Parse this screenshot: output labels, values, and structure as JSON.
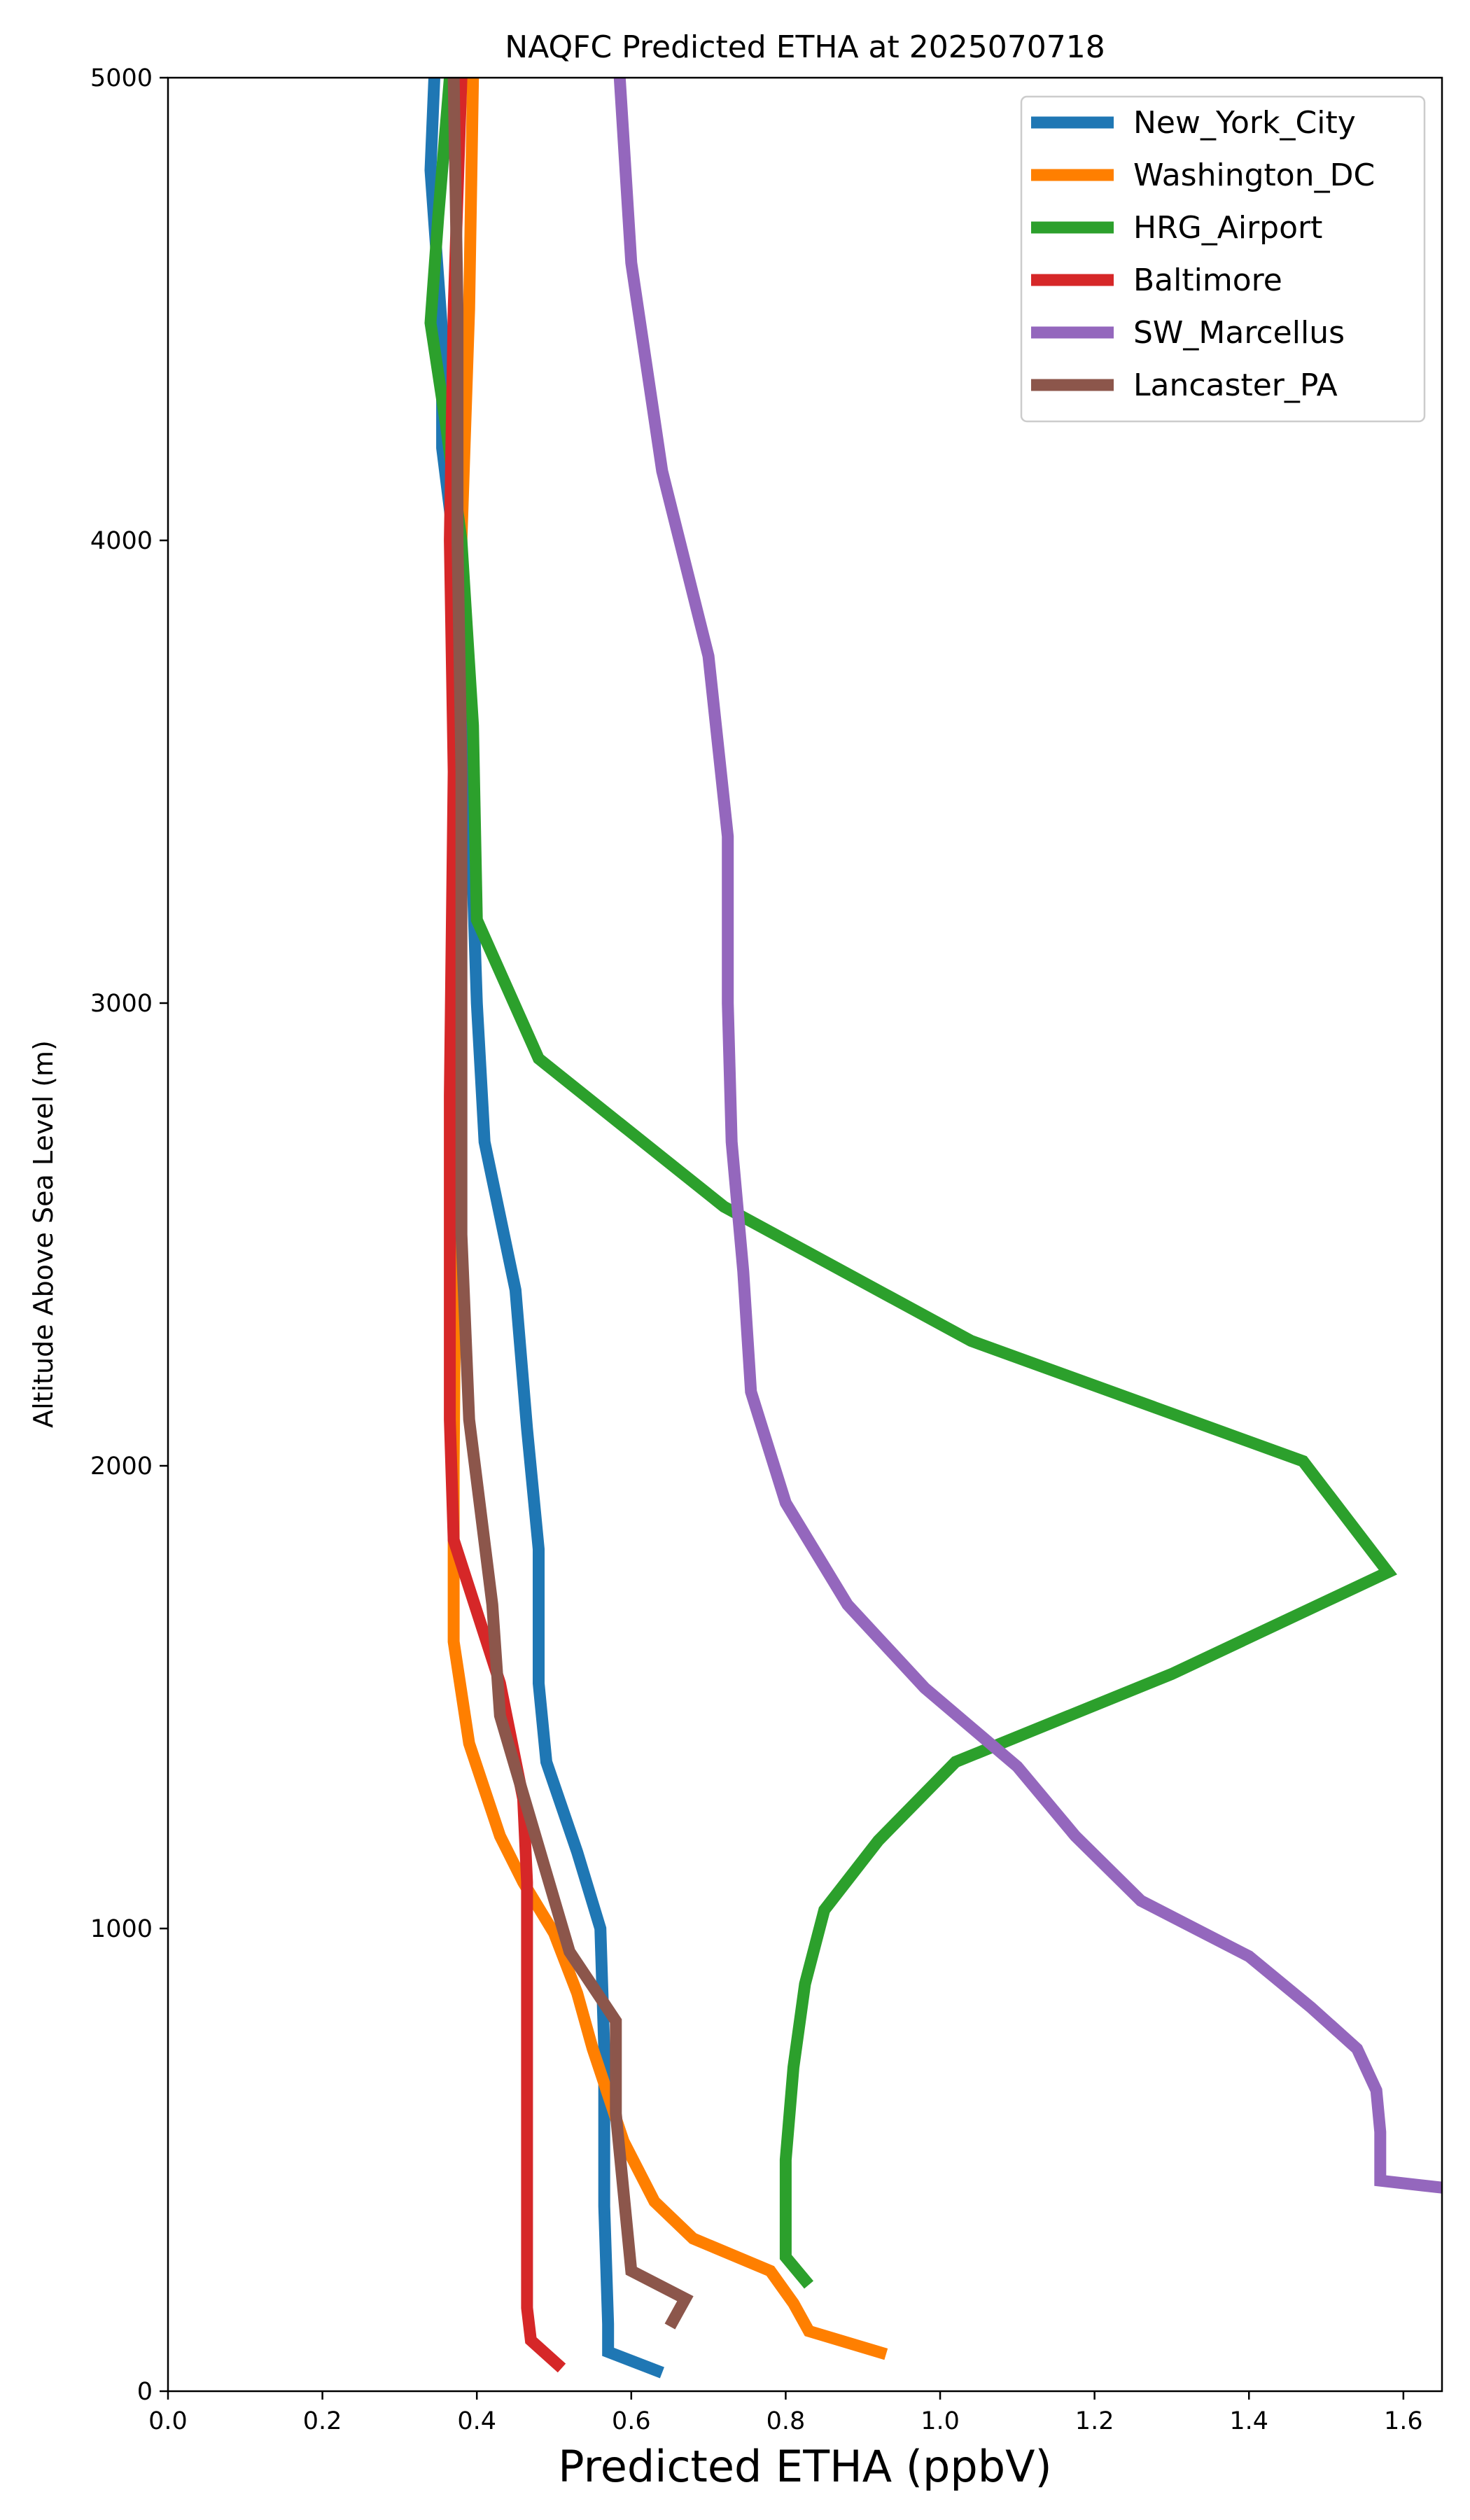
{
  "chart_data": {
    "type": "line",
    "title": "NAQFC Predicted ETHA at 2025070718",
    "xlabel": "Predicted ETHA (ppbV)",
    "ylabel": "Altitude Above Sea Level (m)",
    "xlim": [
      0,
      1.65
    ],
    "ylim": [
      0,
      5000
    ],
    "xticks": [
      "0.0",
      "0.2",
      "0.4",
      "0.6",
      "0.8",
      "1.0",
      "1.2",
      "1.4",
      "1.6"
    ],
    "yticks": [
      "0",
      "1000",
      "2000",
      "3000",
      "4000",
      "5000"
    ],
    "grid": false,
    "legend_position": "top-right",
    "series": [
      {
        "name": "New_York_City",
        "color": "#1f77b4",
        "points": [
          [
            0.64,
            40
          ],
          [
            0.57,
            85
          ],
          [
            0.57,
            145
          ],
          [
            0.565,
            400
          ],
          [
            0.565,
            740
          ],
          [
            0.56,
            1000
          ],
          [
            0.53,
            1165
          ],
          [
            0.49,
            1360
          ],
          [
            0.48,
            1530
          ],
          [
            0.48,
            1820
          ],
          [
            0.465,
            2080
          ],
          [
            0.45,
            2380
          ],
          [
            0.41,
            2700
          ],
          [
            0.4,
            3000
          ],
          [
            0.39,
            3500
          ],
          [
            0.37,
            4000
          ],
          [
            0.355,
            4200
          ],
          [
            0.355,
            4450
          ],
          [
            0.34,
            4800
          ],
          [
            0.345,
            5000
          ]
        ]
      },
      {
        "name": "Washington_DC",
        "color": "#ff7f00",
        "points": [
          [
            0.93,
            80
          ],
          [
            0.83,
            130
          ],
          [
            0.81,
            190
          ],
          [
            0.78,
            260
          ],
          [
            0.68,
            330
          ],
          [
            0.63,
            410
          ],
          [
            0.59,
            540
          ],
          [
            0.55,
            740
          ],
          [
            0.53,
            860
          ],
          [
            0.5,
            990
          ],
          [
            0.46,
            1100
          ],
          [
            0.43,
            1200
          ],
          [
            0.39,
            1400
          ],
          [
            0.37,
            1620
          ],
          [
            0.37,
            2000
          ],
          [
            0.375,
            3000
          ],
          [
            0.375,
            3500
          ],
          [
            0.38,
            4000
          ],
          [
            0.39,
            4500
          ],
          [
            0.395,
            5000
          ]
        ]
      },
      {
        "name": "HRG_Airport",
        "color": "#2ca02c",
        "points": [
          [
            0.83,
            230
          ],
          [
            0.8,
            290
          ],
          [
            0.8,
            500
          ],
          [
            0.81,
            700
          ],
          [
            0.825,
            880
          ],
          [
            0.85,
            1040
          ],
          [
            0.92,
            1190
          ],
          [
            1.02,
            1360
          ],
          [
            1.3,
            1550
          ],
          [
            1.58,
            1770
          ],
          [
            1.47,
            2010
          ],
          [
            1.04,
            2270
          ],
          [
            0.72,
            2560
          ],
          [
            0.48,
            2880
          ],
          [
            0.4,
            3180
          ],
          [
            0.395,
            3600
          ],
          [
            0.38,
            4000
          ],
          [
            0.36,
            4250
          ],
          [
            0.34,
            4470
          ],
          [
            0.35,
            4700
          ],
          [
            0.365,
            5000
          ]
        ]
      },
      {
        "name": "Baltimore",
        "color": "#d62728",
        "points": [
          [
            0.51,
            50
          ],
          [
            0.47,
            110
          ],
          [
            0.465,
            180
          ],
          [
            0.465,
            500
          ],
          [
            0.465,
            800
          ],
          [
            0.465,
            1100
          ],
          [
            0.46,
            1280
          ],
          [
            0.43,
            1530
          ],
          [
            0.37,
            1840
          ],
          [
            0.365,
            2100
          ],
          [
            0.365,
            2800
          ],
          [
            0.37,
            3500
          ],
          [
            0.365,
            4000
          ],
          [
            0.37,
            4500
          ],
          [
            0.38,
            5000
          ]
        ]
      },
      {
        "name": "SW_Marcellus",
        "color": "#9467bd",
        "points": [
          [
            1.65,
            440
          ],
          [
            1.57,
            455
          ],
          [
            1.57,
            560
          ],
          [
            1.565,
            650
          ],
          [
            1.54,
            740
          ],
          [
            1.48,
            830
          ],
          [
            1.4,
            940
          ],
          [
            1.26,
            1060
          ],
          [
            1.175,
            1200
          ],
          [
            1.1,
            1350
          ],
          [
            0.98,
            1520
          ],
          [
            0.88,
            1700
          ],
          [
            0.8,
            1920
          ],
          [
            0.755,
            2160
          ],
          [
            0.745,
            2420
          ],
          [
            0.73,
            2700
          ],
          [
            0.725,
            3000
          ],
          [
            0.725,
            3360
          ],
          [
            0.7,
            3750
          ],
          [
            0.64,
            4150
          ],
          [
            0.6,
            4600
          ],
          [
            0.585,
            5000
          ]
        ]
      },
      {
        "name": "Lancaster_PA",
        "color": "#8c564b",
        "points": [
          [
            0.65,
            140
          ],
          [
            0.67,
            200
          ],
          [
            0.6,
            260
          ],
          [
            0.58,
            600
          ],
          [
            0.58,
            800
          ],
          [
            0.52,
            950
          ],
          [
            0.46,
            1290
          ],
          [
            0.43,
            1460
          ],
          [
            0.42,
            1700
          ],
          [
            0.39,
            2100
          ],
          [
            0.38,
            2500
          ],
          [
            0.38,
            3000
          ],
          [
            0.38,
            3500
          ],
          [
            0.375,
            4000
          ],
          [
            0.375,
            4500
          ],
          [
            0.37,
            5000
          ]
        ]
      }
    ]
  }
}
